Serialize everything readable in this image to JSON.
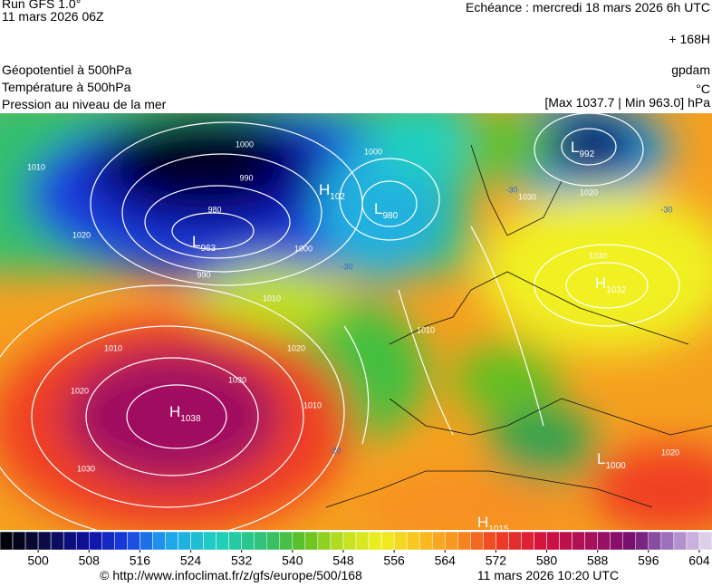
{
  "header": {
    "run": "Run GFS 1.0°",
    "run_date": "11 mars 2026 06Z",
    "valid": "Echéance : mercredi 18 mars 2026 6h UTC",
    "lead": "+ 168H"
  },
  "layers": [
    "Géopotentiel à 500hPa",
    "Température à 500hPa",
    "Pression au niveau de la mer"
  ],
  "units": {
    "geopotential": "gpdam",
    "temperature": "°C",
    "pressure": "[Max 1037.7 | Min 963.0] hPa"
  },
  "centers": [
    {
      "kind": "H",
      "value": "1038"
    },
    {
      "kind": "L",
      "value": "963"
    },
    {
      "kind": "L",
      "value": "980"
    },
    {
      "kind": "H",
      "value": "102"
    },
    {
      "kind": "L",
      "value": "992"
    },
    {
      "kind": "H",
      "value": "1032"
    },
    {
      "kind": "L",
      "value": "1000"
    },
    {
      "kind": "H",
      "value": "1015"
    }
  ],
  "isobar_labels": [
    "1010",
    "1000",
    "990",
    "980",
    "1020",
    "1000",
    "990",
    "1010",
    "1010",
    "1020",
    "1020",
    "1030",
    "1030",
    "1010",
    "1000",
    "1020",
    "1030",
    "1030",
    "1010",
    "1020"
  ],
  "temperature_labels": [
    "-30",
    "-30",
    "-30",
    "-20"
  ],
  "colorbar": {
    "range": [
      494,
      606
    ],
    "step": 2,
    "ticks": [
      500,
      508,
      516,
      524,
      532,
      540,
      548,
      556,
      564,
      572,
      580,
      588,
      596,
      604
    ],
    "colors": [
      [
        494,
        "#000000"
      ],
      [
        500,
        "#0a0a3a"
      ],
      [
        508,
        "#1010a0"
      ],
      [
        514,
        "#1a40e0"
      ],
      [
        520,
        "#20a0f0"
      ],
      [
        528,
        "#20d0c0"
      ],
      [
        536,
        "#30c070"
      ],
      [
        542,
        "#60c020"
      ],
      [
        548,
        "#c0e020"
      ],
      [
        554,
        "#f0f020"
      ],
      [
        560,
        "#f8c020"
      ],
      [
        566,
        "#f89020"
      ],
      [
        572,
        "#f04020"
      ],
      [
        580,
        "#d01040"
      ],
      [
        588,
        "#a01060"
      ],
      [
        594,
        "#701070"
      ],
      [
        598,
        "#9060b0"
      ],
      [
        602,
        "#c0a0d8"
      ],
      [
        606,
        "#e8e0f0"
      ]
    ]
  },
  "footer": {
    "source": "© http://www.infoclimat.fr/z/gfs/europe/500/168",
    "generated": "11 mars 2026 10:20 UTC"
  }
}
